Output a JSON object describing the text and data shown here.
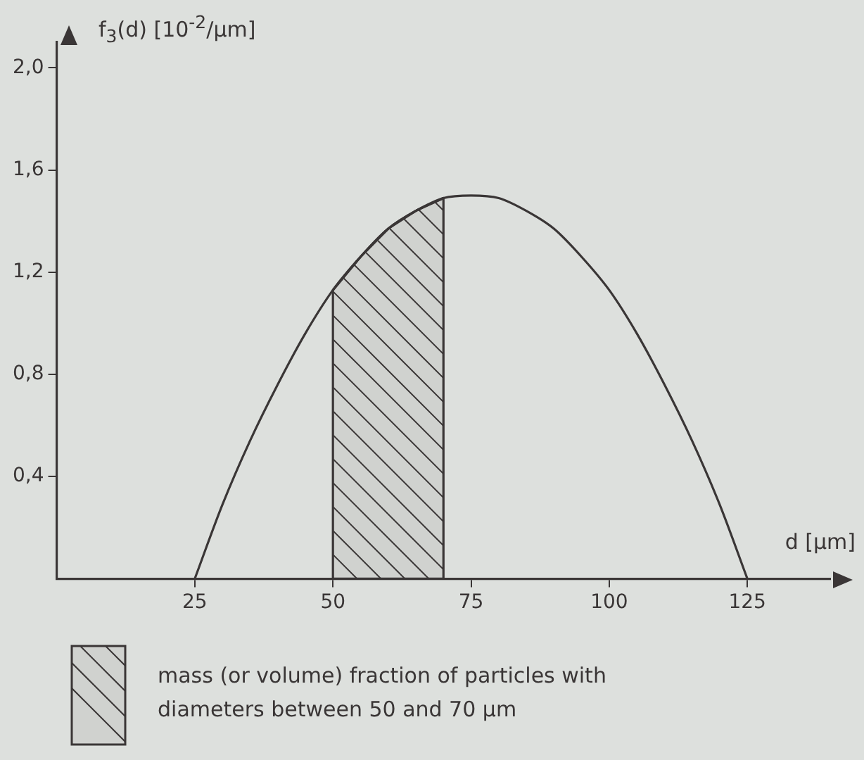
{
  "chart_data": {
    "type": "line",
    "ylabel": "f$_{3}$(d) [10$^{-2}$/µm]",
    "xlabel": "d [µm]",
    "x": [
      25,
      30,
      35,
      40,
      45,
      50,
      55,
      60,
      65,
      70,
      75,
      80,
      85,
      90,
      95,
      100,
      105,
      110,
      115,
      120,
      125
    ],
    "series": [
      {
        "color": "#3a3636",
        "values": [
          0,
          0.29,
          0.54,
          0.76,
          0.96,
          1.13,
          1.26,
          1.37,
          1.44,
          1.49,
          1.5,
          1.49,
          1.44,
          1.37,
          1.26,
          1.13,
          0.96,
          0.76,
          0.54,
          0.29,
          0
        ]
      },
      {
        "type": "area",
        "name": "mass (or volume) fraction of particles with diameters between 50 and 70 µm",
        "color": "#3a3636",
        "x": [
          50,
          55,
          60,
          65,
          70
        ],
        "values": [
          1.13,
          1.26,
          1.37,
          1.44,
          1.49
        ]
      }
    ],
    "xlim": [
      0,
      140
    ],
    "xticks": [
      25,
      50,
      75,
      100,
      125
    ],
    "ylim": [
      0,
      2.1
    ],
    "yticks": [
      {
        "value": 0.4,
        "label": "0,4"
      },
      {
        "value": 0.8,
        "label": "0,8"
      },
      {
        "value": 1.2,
        "label": "1,2"
      },
      {
        "value": 1.6,
        "label": "1,6"
      },
      {
        "value": 2.0,
        "label": "2,0"
      }
    ],
    "legend": "bottom",
    "grid": false,
    "marker": "none",
    "line_style": "solid"
  }
}
